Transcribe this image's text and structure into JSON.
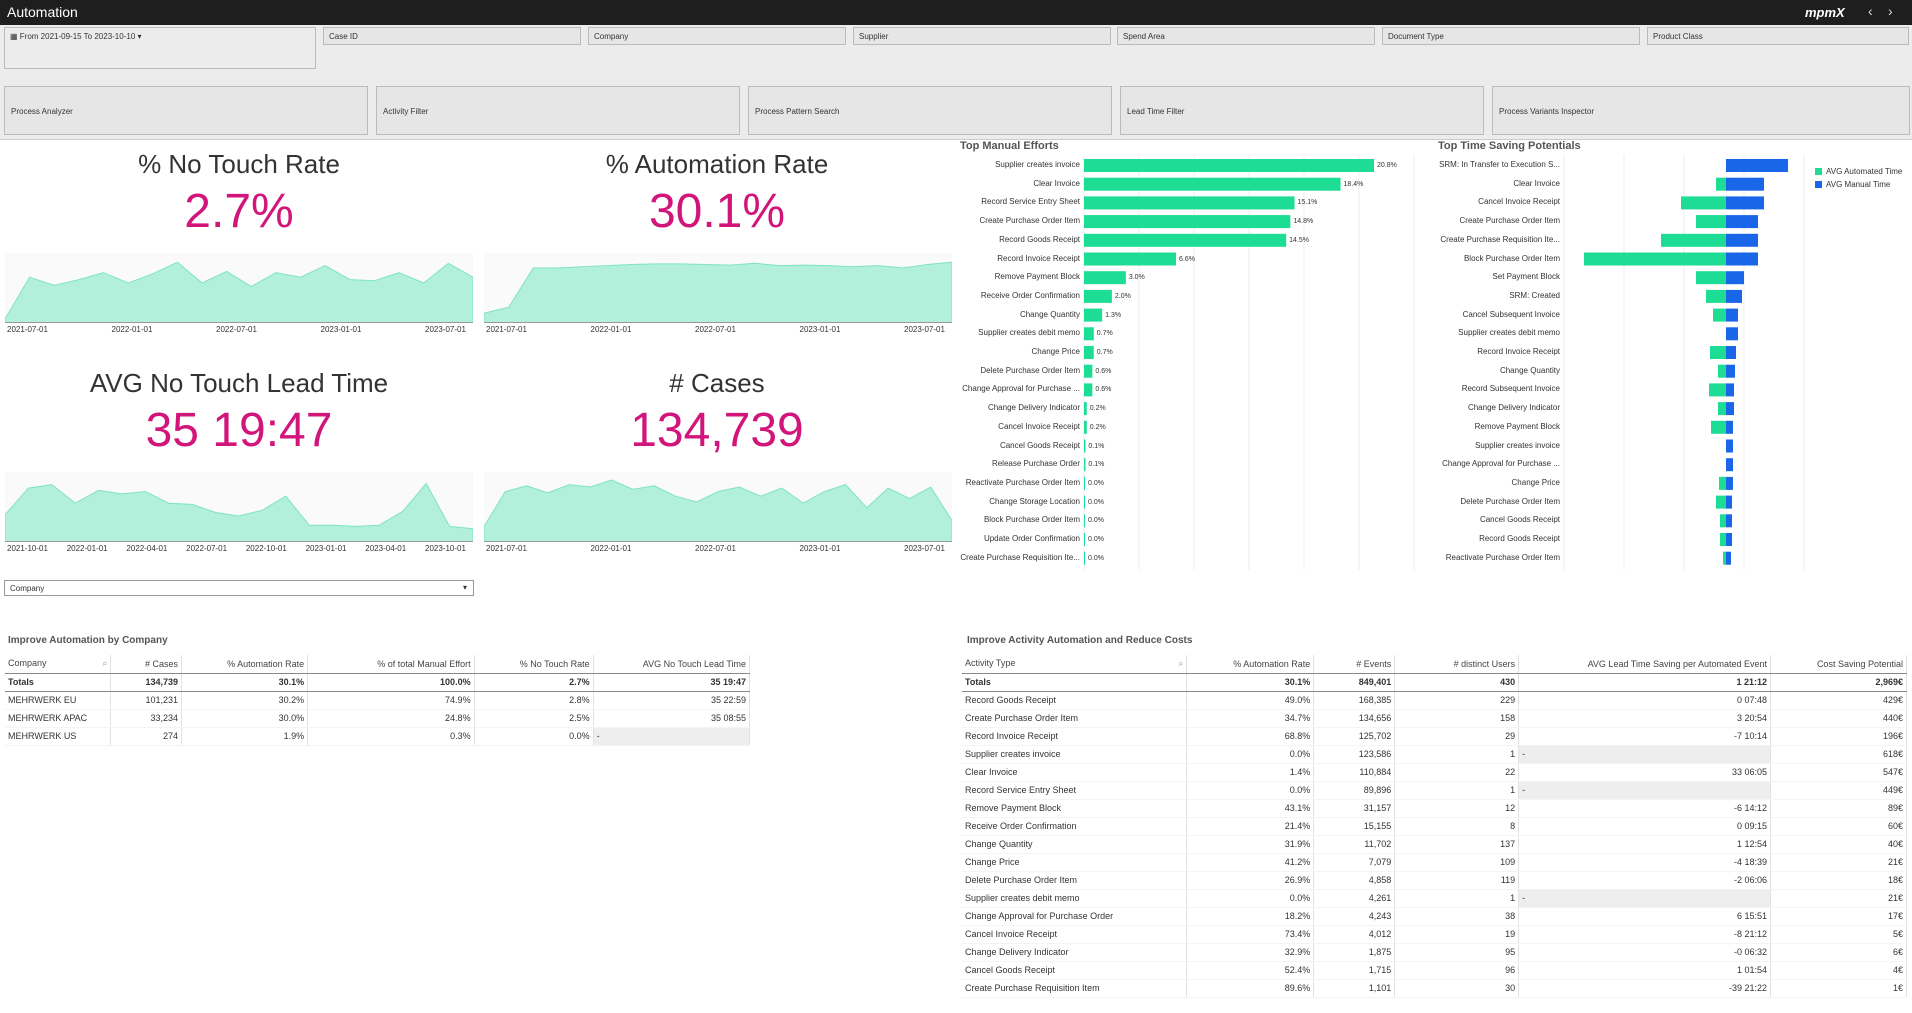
{
  "window": {
    "title": "Automation",
    "logo": "mpmX",
    "nav_prev": "‹",
    "nav_next": "›"
  },
  "filters": {
    "date": "From 2021-09-15 To 2023-10-10",
    "fields": [
      "Case ID",
      "Company",
      "Supplier",
      "Spend Area",
      "Document Type",
      "Product Class"
    ],
    "tools": [
      "Process Analyzer",
      "Activity Filter",
      "Process Pattern Search",
      "Lead Time Filter",
      "Process Variants Inspector"
    ]
  },
  "kpis": [
    {
      "label": "% No Touch Rate",
      "value": "2.7%",
      "axis": [
        "2021-07-01",
        "2022-01-01",
        "2022-07-01",
        "2023-01-01",
        "2023-07-01"
      ],
      "series": [
        0,
        0.72,
        0.58,
        0.68,
        0.8,
        0.62,
        0.78,
        0.98,
        0.62,
        0.82,
        0.56,
        0.8,
        0.72,
        0.92,
        0.68,
        0.66,
        0.8,
        0.62,
        0.96,
        0.72
      ]
    },
    {
      "label": "% Automation Rate",
      "value": "30.1%",
      "axis": [
        "2021-07-01",
        "2022-01-01",
        "2022-07-01",
        "2023-01-01",
        "2023-07-01"
      ],
      "series": [
        0.1,
        0.2,
        0.88,
        0.88,
        0.9,
        0.92,
        0.94,
        0.95,
        0.95,
        0.94,
        0.93,
        0.96,
        0.92,
        0.93,
        0.92,
        0.9,
        0.92,
        0.88,
        0.94,
        0.98
      ]
    },
    {
      "label": "AVG No Touch Lead Time",
      "value": "35 19:47",
      "axis": [
        "2021-10-01",
        "2022-01-01",
        "2022-04-01",
        "2022-07-01",
        "2022-10-01",
        "2023-01-01",
        "2023-04-01",
        "2023-10-01"
      ],
      "series": [
        0.4,
        0.86,
        0.92,
        0.6,
        0.82,
        0.76,
        0.8,
        0.6,
        0.58,
        0.44,
        0.38,
        0.48,
        0.72,
        0.22,
        0.22,
        0.2,
        0.22,
        0.46,
        0.94,
        0.2,
        0.16
      ]
    },
    {
      "label": "# Cases",
      "value": "134,739",
      "axis": [
        "2021-07-01",
        "2022-01-01",
        "2022-07-01",
        "2023-01-01",
        "2023-07-01"
      ],
      "series": [
        0.2,
        0.8,
        0.9,
        0.78,
        0.92,
        0.88,
        1,
        0.84,
        0.9,
        0.72,
        0.62,
        0.8,
        0.88,
        0.72,
        0.86,
        0.6,
        0.8,
        0.92,
        0.52,
        0.86,
        0.68,
        0.88,
        0.3
      ]
    }
  ],
  "company_select": "Company",
  "manual_efforts": {
    "title": "Top Manual Efforts",
    "items": [
      [
        "Supplier creates invoice",
        20.8,
        "20.8%"
      ],
      [
        "Clear Invoice",
        18.4,
        "18.4%"
      ],
      [
        "Record Service Entry Sheet",
        15.1,
        "15.1%"
      ],
      [
        "Create Purchase Order Item",
        14.8,
        "14.8%"
      ],
      [
        "Record Goods Receipt",
        14.5,
        "14.5%"
      ],
      [
        "Record Invoice Receipt",
        6.6,
        "6.6%"
      ],
      [
        "Remove Payment Block",
        3.0,
        "3.0%"
      ],
      [
        "Receive Order Confirmation",
        2.0,
        "2.0%"
      ],
      [
        "Change Quantity",
        1.3,
        "1.3%"
      ],
      [
        "Supplier creates debit memo",
        0.7,
        "0.7%"
      ],
      [
        "Change Price",
        0.7,
        "0.7%"
      ],
      [
        "Delete Purchase Order Item",
        0.6,
        "0.6%"
      ],
      [
        "Change Approval for Purchase ...",
        0.6,
        "0.6%"
      ],
      [
        "Change Delivery Indicator",
        0.2,
        "0.2%"
      ],
      [
        "Cancel Invoice Receipt",
        0.2,
        "0.2%"
      ],
      [
        "Cancel Goods Receipt",
        0.1,
        "0.1%"
      ],
      [
        "Release Purchase Order",
        0.1,
        "0.1%"
      ],
      [
        "Reactivate Purchase Order Item",
        0.02,
        "0.0%"
      ],
      [
        "Change Storage Location",
        0.02,
        "0.0%"
      ],
      [
        "Block Purchase Order Item",
        0.02,
        "0.0%"
      ],
      [
        "Update Order Confirmation",
        0.02,
        "0.0%"
      ],
      [
        "Create Purchase Requisition Ite...",
        0.02,
        "0.0%"
      ]
    ]
  },
  "time_saving": {
    "title": "Top Time Saving Potentials",
    "legend": [
      "AVG Automated Time",
      "AVG Manual Time"
    ],
    "colors": {
      "automated": "#1ddc94",
      "manual": "#1a66e8"
    },
    "items": [
      [
        "SRM: In Transfer to Execution S...",
        0,
        62
      ],
      [
        "Clear Invoice",
        -10,
        38
      ],
      [
        "Cancel Invoice Receipt",
        -45,
        38
      ],
      [
        "Create Purchase Order Item",
        -30,
        32
      ],
      [
        "Create Purchase Requisition Ite...",
        -65,
        32
      ],
      [
        "Block Purchase Order Item",
        -142,
        32
      ],
      [
        "Set Payment Block",
        -30,
        18
      ],
      [
        "SRM: Created",
        -20,
        16
      ],
      [
        "Cancel Subsequent Invoice",
        -13,
        12
      ],
      [
        "Supplier creates debit memo",
        0,
        12
      ],
      [
        "Record Invoice Receipt",
        -16,
        10
      ],
      [
        "Change Quantity",
        -8,
        9
      ],
      [
        "Record Subsequent Invoice",
        -17,
        8
      ],
      [
        "Change Delivery Indicator",
        -8,
        8
      ],
      [
        "Remove Payment Block",
        -15,
        7
      ],
      [
        "Supplier creates invoice",
        0,
        7
      ],
      [
        "Change Approval for Purchase ...",
        0,
        7
      ],
      [
        "Change Price",
        -7,
        7
      ],
      [
        "Delete Purchase Order Item",
        -10,
        6
      ],
      [
        "Cancel Goods Receipt",
        -6,
        6
      ],
      [
        "Record Goods Receipt",
        -6,
        6
      ],
      [
        "Reactivate Purchase Order Item",
        -3,
        5
      ]
    ]
  },
  "company_table": {
    "title": "Improve Automation by Company",
    "headers": [
      "Company",
      "# Cases",
      "% Automation Rate",
      "% of total Manual Effort",
      "% No Touch Rate",
      "AVG No Touch Lead Time"
    ],
    "totals": [
      "Totals",
      "134,739",
      "30.1%",
      "100.0%",
      "2.7%",
      "35 19:47"
    ],
    "rows": [
      [
        "MEHRWERK EU",
        "101,231",
        "30.2%",
        "74.9%",
        "2.8%",
        "35 22:59"
      ],
      [
        "MEHRWERK APAC",
        "33,234",
        "30.0%",
        "24.8%",
        "2.5%",
        "35 08:55"
      ],
      [
        "MEHRWERK US",
        "274",
        "1.9%",
        "0.3%",
        "0.0%",
        "-"
      ]
    ]
  },
  "activity_table": {
    "title": "Improve Activity Automation and Reduce Costs",
    "headers": [
      "Activity Type",
      "% Automation Rate",
      "# Events",
      "# distinct Users",
      "AVG Lead Time Saving per Automated Event",
      "Cost Saving Potential"
    ],
    "totals": [
      "Totals",
      "30.1%",
      "849,401",
      "430",
      "1 21:12",
      "2,969€"
    ],
    "rows": [
      [
        "Record Goods Receipt",
        "49.0%",
        "168,385",
        "229",
        "0 07:48",
        "429€"
      ],
      [
        "Create Purchase Order Item",
        "34.7%",
        "134,656",
        "158",
        "3 20:54",
        "440€"
      ],
      [
        "Record Invoice Receipt",
        "68.8%",
        "125,702",
        "29",
        "-7 10:14",
        "196€"
      ],
      [
        "Supplier creates invoice",
        "0.0%",
        "123,586",
        "1",
        "-",
        "618€"
      ],
      [
        "Clear Invoice",
        "1.4%",
        "110,884",
        "22",
        "33 06:05",
        "547€"
      ],
      [
        "Record Service Entry Sheet",
        "0.0%",
        "89,896",
        "1",
        "-",
        "449€"
      ],
      [
        "Remove Payment Block",
        "43.1%",
        "31,157",
        "12",
        "-6 14:12",
        "89€"
      ],
      [
        "Receive Order Confirmation",
        "21.4%",
        "15,155",
        "8",
        "0 09:15",
        "60€"
      ],
      [
        "Change Quantity",
        "31.9%",
        "11,702",
        "137",
        "1 12:54",
        "40€"
      ],
      [
        "Change Price",
        "41.2%",
        "7,079",
        "109",
        "-4 18:39",
        "21€"
      ],
      [
        "Delete Purchase Order Item",
        "26.9%",
        "4,858",
        "119",
        "-2 06:06",
        "18€"
      ],
      [
        "Supplier creates debit memo",
        "0.0%",
        "4,261",
        "1",
        "-",
        "21€"
      ],
      [
        "Change Approval for Purchase Order",
        "18.2%",
        "4,243",
        "38",
        "6 15:51",
        "17€"
      ],
      [
        "Cancel Invoice Receipt",
        "73.4%",
        "4,012",
        "19",
        "-8 21:12",
        "5€"
      ],
      [
        "Change Delivery Indicator",
        "32.9%",
        "1,875",
        "95",
        "-0 06:32",
        "6€"
      ],
      [
        "Cancel Goods Receipt",
        "52.4%",
        "1,715",
        "96",
        "1 01:54",
        "4€"
      ],
      [
        "Create Purchase Requisition Item",
        "89.6%",
        "1,101",
        "30",
        "-39 21:22",
        "1€"
      ]
    ]
  }
}
